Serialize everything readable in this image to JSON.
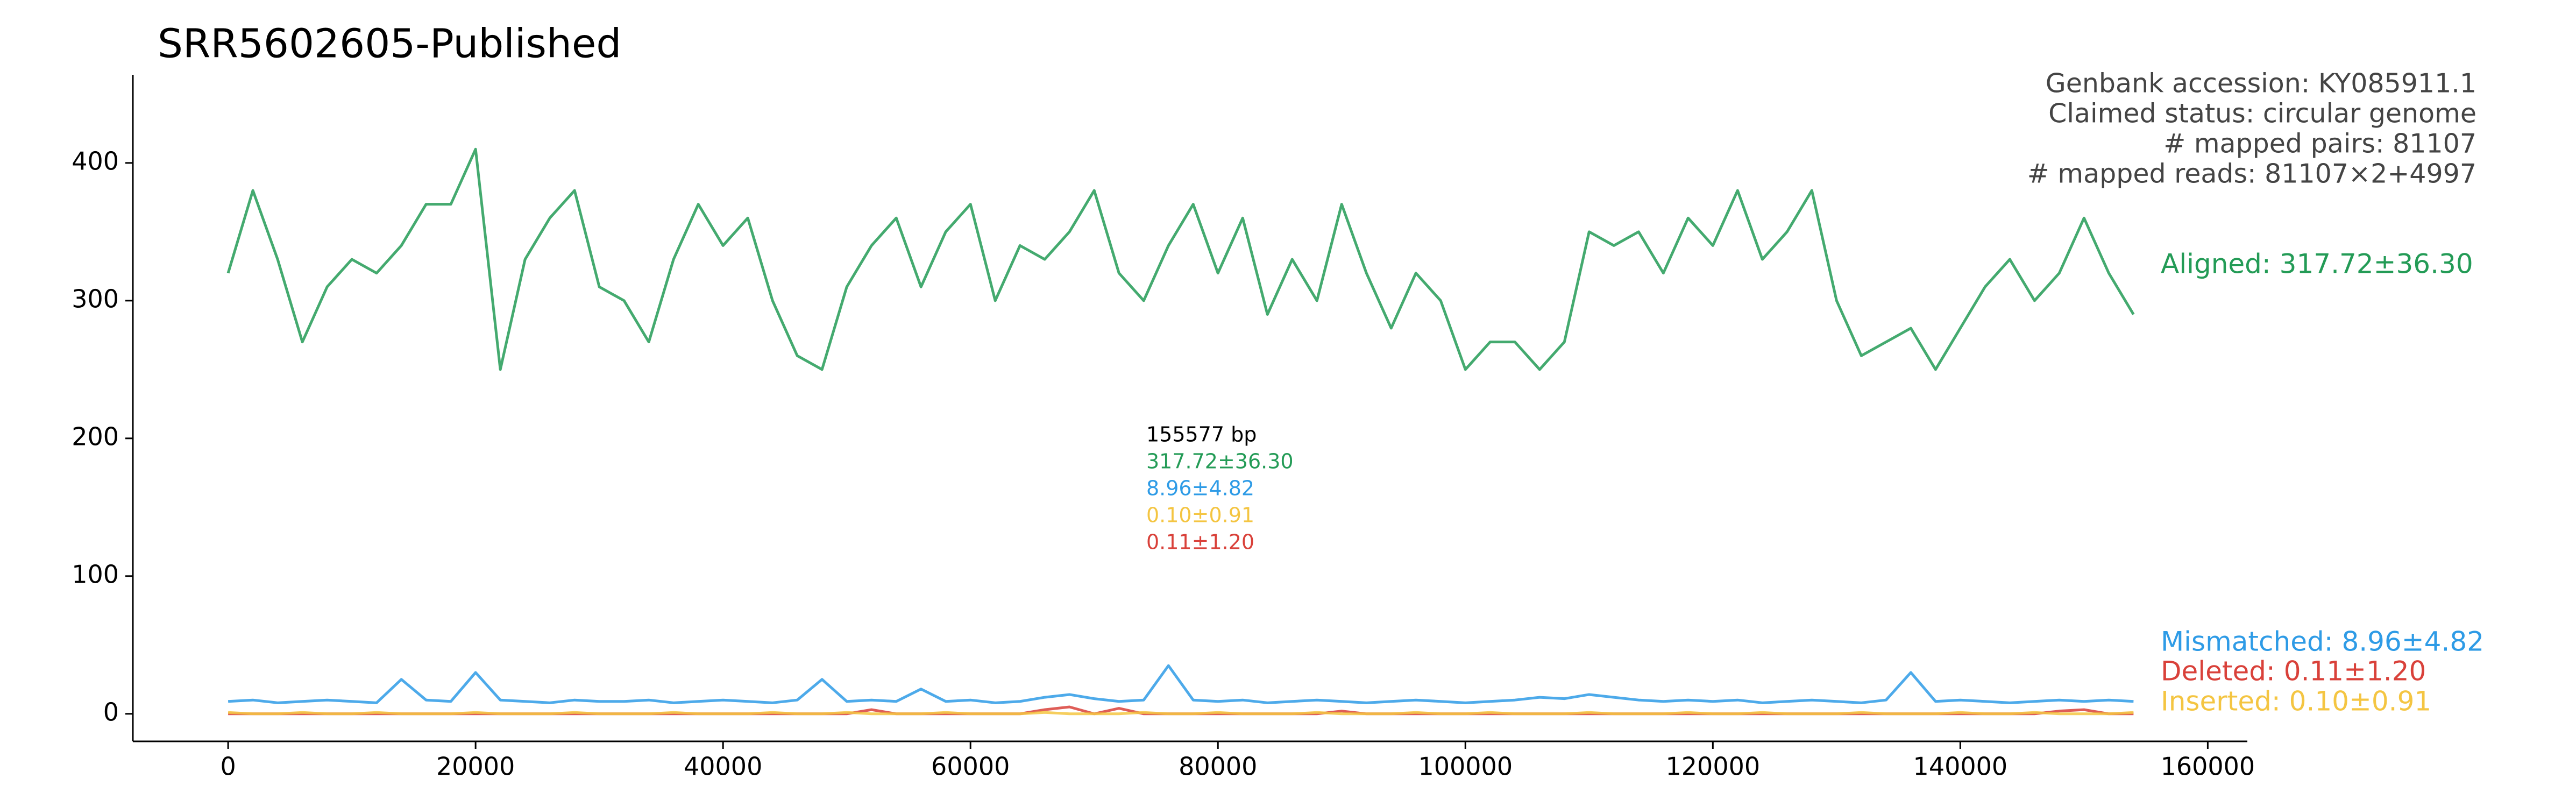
{
  "chart_data": {
    "type": "line",
    "title": "SRR5602605-Published",
    "info": [
      "Genbank accession: KY085911.1",
      "Claimed status: circular genome",
      "# mapped pairs: 81107",
      "# mapped reads: 81107×2+4997"
    ],
    "info_color": "#444444",
    "stats": [
      {
        "text": "155577 bp",
        "color": "#000000"
      },
      {
        "text": "317.72±36.30",
        "color": "#239b56"
      },
      {
        "text": "8.96±4.82",
        "color": "#2e9be6"
      },
      {
        "text": "0.10±0.91",
        "color": "#f4c542"
      },
      {
        "text": "0.11±1.20",
        "color": "#d9413a"
      }
    ],
    "x": [
      0,
      2000,
      4000,
      6000,
      8000,
      10000,
      12000,
      14000,
      16000,
      18000,
      20000,
      22000,
      24000,
      26000,
      28000,
      30000,
      32000,
      34000,
      36000,
      38000,
      40000,
      42000,
      44000,
      46000,
      48000,
      50000,
      52000,
      54000,
      56000,
      58000,
      60000,
      62000,
      64000,
      66000,
      68000,
      70000,
      72000,
      74000,
      76000,
      78000,
      80000,
      82000,
      84000,
      86000,
      88000,
      90000,
      92000,
      94000,
      96000,
      98000,
      100000,
      102000,
      104000,
      106000,
      108000,
      110000,
      112000,
      114000,
      116000,
      118000,
      120000,
      122000,
      124000,
      126000,
      128000,
      130000,
      132000,
      134000,
      136000,
      138000,
      140000,
      142000,
      144000,
      146000,
      148000,
      150000,
      152000,
      154000
    ],
    "series": [
      {
        "name": "Aligned: 317.72±36.30",
        "color": "#239b56",
        "values": [
          320,
          380,
          330,
          270,
          310,
          330,
          320,
          340,
          370,
          370,
          410,
          250,
          330,
          360,
          380,
          310,
          300,
          270,
          330,
          370,
          340,
          360,
          300,
          260,
          250,
          310,
          340,
          360,
          310,
          350,
          370,
          300,
          340,
          330,
          350,
          380,
          320,
          300,
          340,
          370,
          320,
          360,
          290,
          330,
          300,
          370,
          320,
          280,
          320,
          300,
          250,
          270,
          270,
          250,
          270,
          350,
          340,
          350,
          320,
          360,
          340,
          380,
          330,
          350,
          380,
          300,
          260,
          270,
          280,
          250,
          280,
          310,
          330,
          300,
          320,
          360,
          320,
          290
        ]
      },
      {
        "name": "Mismatched: 8.96±4.82",
        "color": "#2e9be6",
        "values": [
          9,
          10,
          8,
          9,
          10,
          9,
          8,
          25,
          10,
          9,
          30,
          10,
          9,
          8,
          10,
          9,
          9,
          10,
          8,
          9,
          10,
          9,
          8,
          10,
          25,
          9,
          10,
          9,
          18,
          9,
          10,
          8,
          9,
          12,
          14,
          11,
          9,
          10,
          35,
          10,
          9,
          10,
          8,
          9,
          10,
          9,
          8,
          9,
          10,
          9,
          8,
          9,
          10,
          12,
          11,
          14,
          12,
          10,
          9,
          10,
          9,
          10,
          8,
          9,
          10,
          9,
          8,
          10,
          30,
          9,
          10,
          9,
          8,
          9,
          10,
          9,
          10,
          9
        ]
      },
      {
        "name": "Deleted: 0.11±1.20",
        "color": "#d9413a",
        "values": [
          0,
          0,
          0,
          0,
          0,
          0,
          0,
          0,
          0,
          0,
          0,
          0,
          0,
          0,
          0,
          0,
          0,
          0,
          0,
          0,
          0,
          0,
          0,
          0,
          0,
          0,
          3,
          0,
          0,
          0,
          0,
          0,
          0,
          3,
          5,
          0,
          4,
          0,
          0,
          0,
          0,
          0,
          0,
          0,
          0,
          2,
          0,
          0,
          0,
          0,
          0,
          0,
          0,
          0,
          0,
          0,
          0,
          0,
          0,
          0,
          0,
          0,
          0,
          0,
          0,
          0,
          0,
          0,
          0,
          0,
          0,
          0,
          0,
          0,
          2,
          3,
          0,
          0
        ]
      },
      {
        "name": "Inserted: 0.10±0.91",
        "color": "#f4c542",
        "values": [
          1,
          0,
          0,
          1,
          0,
          0,
          1,
          0,
          0,
          0,
          1,
          0,
          0,
          0,
          1,
          0,
          0,
          0,
          1,
          0,
          0,
          0,
          1,
          0,
          0,
          1,
          0,
          0,
          0,
          1,
          0,
          0,
          0,
          1,
          0,
          0,
          0,
          1,
          0,
          0,
          1,
          0,
          0,
          0,
          1,
          0,
          0,
          0,
          1,
          0,
          0,
          1,
          0,
          0,
          0,
          1,
          0,
          0,
          0,
          1,
          0,
          0,
          1,
          0,
          0,
          0,
          1,
          0,
          0,
          0,
          1,
          0,
          0,
          1,
          0,
          0,
          0,
          1
        ]
      }
    ],
    "xlim": [
      -7700,
      163200
    ],
    "ylim": [
      -20,
      464
    ],
    "xticks": [
      0,
      20000,
      40000,
      60000,
      80000,
      100000,
      120000,
      140000,
      160000
    ],
    "yticks": [
      0,
      100,
      200,
      300,
      400
    ]
  }
}
